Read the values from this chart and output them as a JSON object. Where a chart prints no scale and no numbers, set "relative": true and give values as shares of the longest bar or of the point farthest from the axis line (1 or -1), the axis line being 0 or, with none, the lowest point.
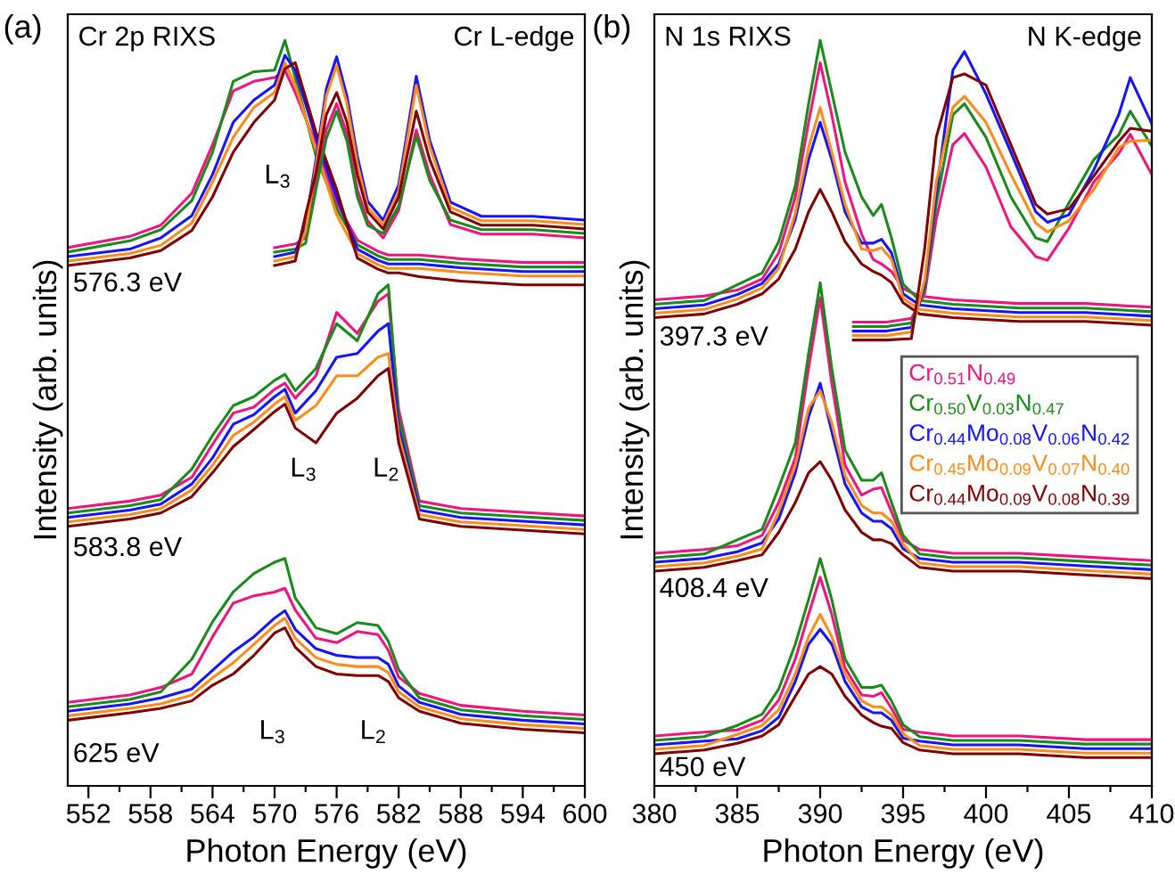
{
  "chart_data": [
    {
      "type": "line",
      "title": "(a)",
      "relative": true,
      "xlabel": "Photon Energy (eV)",
      "ylabel": "Intensity (arb. units)",
      "xlim": [
        550,
        600
      ],
      "xticks": [
        552,
        {
          "value": 555,
          "label": null
        },
        558,
        {
          "value": 561,
          "label": null
        },
        564,
        {
          "value": 567,
          "label": null
        },
        570,
        {
          "value": 573,
          "label": null
        },
        576,
        {
          "value": 579,
          "label": null
        },
        582,
        {
          "value": 585,
          "label": null
        },
        588,
        {
          "value": 591,
          "label": null
        },
        594,
        {
          "value": 597,
          "label": null
        },
        600
      ],
      "annotations": [
        "Cr 2p RIXS",
        "Cr L-edge",
        "576.3 eV",
        "583.8 eV",
        "625 eV",
        "L$_{3}$",
        "L$_{3}$",
        "L$_{2}$",
        "L$_{3}$",
        "L$_{2}$"
      ],
      "x": [
        550,
        556,
        559,
        562,
        564,
        566,
        568,
        570,
        571,
        572,
        574,
        576,
        578,
        580,
        581,
        582,
        584,
        588,
        594,
        600
      ],
      "series": [
        {
          "color": "#f0147f",
          "values": [
            0.722,
            0.737,
            0.752,
            0.795,
            0.86,
            0.932,
            0.945,
            0.95,
            0.96,
            0.93,
            0.861,
            0.782,
            0.732,
            0.717,
            0.712,
            0.712,
            0.712,
            0.707,
            0.702,
            0.702
          ]
        },
        {
          "color": "#1a8a1a",
          "values": [
            0.716,
            0.731,
            0.746,
            0.785,
            0.85,
            0.945,
            0.958,
            0.96,
            1.0,
            0.95,
            0.845,
            0.774,
            0.726,
            0.711,
            0.706,
            0.706,
            0.706,
            0.701,
            0.696,
            0.696
          ]
        },
        {
          "color": "#1414ff",
          "values": [
            0.71,
            0.72,
            0.735,
            0.765,
            0.82,
            0.89,
            0.92,
            0.94,
            0.98,
            0.96,
            0.869,
            0.79,
            0.72,
            0.705,
            0.7,
            0.7,
            0.7,
            0.695,
            0.69,
            0.69
          ]
        },
        {
          "color": "#ff8c1a",
          "values": [
            0.704,
            0.714,
            0.725,
            0.755,
            0.81,
            0.87,
            0.91,
            0.93,
            0.97,
            0.94,
            0.853,
            0.766,
            0.714,
            0.699,
            0.694,
            0.694,
            0.694,
            0.689,
            0.684,
            0.684
          ]
        },
        {
          "color": "#800000",
          "values": [
            0.698,
            0.708,
            0.718,
            0.745,
            0.79,
            0.85,
            0.89,
            0.92,
            0.962,
            0.97,
            0.877,
            0.8,
            0.708,
            0.693,
            0.688,
            0.688,
            0.683,
            0.677,
            0.672,
            0.672
          ]
        },
        {
          "color": "#f0147f",
          "x": [
            570,
            572,
            573,
            574,
            575,
            576,
            577,
            578,
            579,
            580.5,
            582,
            583.7,
            585,
            587,
            590,
            595,
            600
          ],
          "values": [
            0.722,
            0.727,
            0.735,
            0.81,
            0.88,
            0.915,
            0.875,
            0.8,
            0.758,
            0.735,
            0.772,
            0.88,
            0.82,
            0.753,
            0.74,
            0.74,
            0.735
          ]
        },
        {
          "color": "#1a8a1a",
          "x": [
            570,
            572,
            573,
            574,
            575,
            576,
            577,
            578,
            579,
            580.5,
            582,
            583.7,
            585,
            587,
            590,
            595,
            600
          ],
          "values": [
            0.716,
            0.72,
            0.728,
            0.8,
            0.868,
            0.905,
            0.865,
            0.79,
            0.752,
            0.741,
            0.778,
            0.872,
            0.812,
            0.759,
            0.746,
            0.746,
            0.741
          ]
        },
        {
          "color": "#1414ff",
          "x": [
            570,
            572,
            573,
            574,
            575,
            576,
            577,
            578,
            579,
            580.5,
            582,
            583.7,
            585,
            587,
            590,
            595,
            600
          ],
          "values": [
            0.71,
            0.716,
            0.752,
            0.84,
            0.935,
            0.978,
            0.925,
            0.845,
            0.784,
            0.759,
            0.806,
            0.952,
            0.866,
            0.783,
            0.764,
            0.764,
            0.759
          ]
        },
        {
          "color": "#ff8c1a",
          "x": [
            570,
            572,
            573,
            574,
            575,
            576,
            577,
            578,
            579,
            580.5,
            582,
            583.7,
            585,
            587,
            590,
            595,
            600
          ],
          "values": [
            0.704,
            0.71,
            0.744,
            0.832,
            0.925,
            0.966,
            0.915,
            0.835,
            0.776,
            0.753,
            0.798,
            0.94,
            0.858,
            0.776,
            0.758,
            0.758,
            0.753
          ]
        },
        {
          "color": "#800000",
          "x": [
            570,
            572,
            573,
            574,
            575,
            576,
            577,
            578,
            579,
            580.5,
            582,
            583.7,
            585,
            587,
            590,
            595,
            600
          ],
          "values": [
            0.698,
            0.704,
            0.766,
            0.822,
            0.9,
            0.93,
            0.89,
            0.82,
            0.77,
            0.747,
            0.79,
            0.905,
            0.84,
            0.77,
            0.752,
            0.752,
            0.747
          ]
        },
        {
          "color": "#f0147f",
          "values": [
            0.372,
            0.382,
            0.39,
            0.414,
            0.458,
            0.5,
            0.508,
            0.532,
            0.54,
            0.52,
            0.55,
            0.635,
            0.607,
            0.65,
            0.66,
            0.505,
            0.382,
            0.372,
            0.367,
            0.362
          ]
        },
        {
          "color": "#1a8a1a",
          "values": [
            0.366,
            0.376,
            0.384,
            0.425,
            0.47,
            0.51,
            0.522,
            0.544,
            0.552,
            0.53,
            0.56,
            0.62,
            0.597,
            0.66,
            0.672,
            0.495,
            0.376,
            0.366,
            0.361,
            0.356
          ]
        },
        {
          "color": "#1414ff",
          "values": [
            0.36,
            0.37,
            0.378,
            0.405,
            0.44,
            0.485,
            0.498,
            0.522,
            0.532,
            0.5,
            0.53,
            0.575,
            0.58,
            0.61,
            0.62,
            0.48,
            0.37,
            0.36,
            0.355,
            0.35
          ]
        },
        {
          "color": "#ff8c1a",
          "values": [
            0.354,
            0.364,
            0.372,
            0.397,
            0.43,
            0.47,
            0.488,
            0.512,
            0.522,
            0.49,
            0.51,
            0.55,
            0.55,
            0.575,
            0.58,
            0.47,
            0.364,
            0.354,
            0.349,
            0.344
          ]
        },
        {
          "color": "#800000",
          "values": [
            0.348,
            0.358,
            0.366,
            0.388,
            0.42,
            0.455,
            0.478,
            0.502,
            0.512,
            0.48,
            0.46,
            0.5,
            0.52,
            0.55,
            0.56,
            0.46,
            0.358,
            0.348,
            0.343,
            0.338
          ]
        },
        {
          "color": "#f0147f",
          "values": [
            0.112,
            0.122,
            0.132,
            0.15,
            0.2,
            0.245,
            0.255,
            0.26,
            0.265,
            0.236,
            0.198,
            0.192,
            0.207,
            0.203,
            0.182,
            0.146,
            0.124,
            0.108,
            0.1,
            0.095
          ]
        },
        {
          "color": "#1a8a1a",
          "values": [
            0.106,
            0.116,
            0.126,
            0.17,
            0.22,
            0.26,
            0.285,
            0.3,
            0.305,
            0.252,
            0.212,
            0.204,
            0.219,
            0.215,
            0.194,
            0.156,
            0.118,
            0.102,
            0.094,
            0.089
          ]
        },
        {
          "color": "#1414ff",
          "values": [
            0.1,
            0.11,
            0.118,
            0.13,
            0.155,
            0.18,
            0.2,
            0.225,
            0.235,
            0.21,
            0.184,
            0.175,
            0.172,
            0.172,
            0.163,
            0.134,
            0.112,
            0.096,
            0.088,
            0.083
          ]
        },
        {
          "color": "#ff8c1a",
          "values": [
            0.094,
            0.104,
            0.11,
            0.122,
            0.145,
            0.165,
            0.19,
            0.215,
            0.225,
            0.198,
            0.172,
            0.163,
            0.16,
            0.16,
            0.152,
            0.126,
            0.106,
            0.09,
            0.082,
            0.077
          ]
        },
        {
          "color": "#800000",
          "values": [
            0.088,
            0.098,
            0.104,
            0.114,
            0.135,
            0.15,
            0.175,
            0.205,
            0.212,
            0.186,
            0.16,
            0.15,
            0.148,
            0.148,
            0.14,
            0.118,
            0.1,
            0.084,
            0.076,
            0.071
          ]
        }
      ]
    },
    {
      "type": "line",
      "title": "(b)",
      "relative": true,
      "xlabel": "Photon Energy (eV)",
      "ylabel": "Intensity (arb. units)",
      "legend": "right",
      "xlim": [
        380,
        410
      ],
      "xticks": [
        380,
        {
          "value": 382.5,
          "label": null
        },
        385,
        {
          "value": 387.5,
          "label": null
        },
        390,
        {
          "value": 392.5,
          "label": null
        },
        395,
        {
          "value": 397.5,
          "label": null
        },
        400,
        {
          "value": 402.5,
          "label": null
        },
        405,
        {
          "value": 407.5,
          "label": null
        },
        410
      ],
      "annotations": [
        "N 1s RIXS",
        "N K-edge",
        "397.3 eV",
        "408.4 eV",
        "450 eV"
      ],
      "x": [
        380,
        383,
        385,
        386.5,
        387.5,
        388.5,
        389.3,
        390,
        390.7,
        391.5,
        392.5,
        393.2,
        393.7,
        394.3,
        395,
        396,
        398,
        402,
        406,
        410
      ],
      "series": [
        {
          "name": "Cr$_{0.51}$N$_{0.49}$",
          "color": "#f0147f",
          "values": [
            0.652,
            0.657,
            0.665,
            0.68,
            0.715,
            0.79,
            0.89,
            0.97,
            0.9,
            0.81,
            0.74,
            0.706,
            0.7,
            0.69,
            0.667,
            0.657,
            0.652,
            0.647,
            0.647,
            0.642
          ]
        },
        {
          "name": "Cr$_{0.50}$V$_{0.03}$N$_{0.47}$",
          "color": "#1a8a1a",
          "values": [
            0.646,
            0.651,
            0.672,
            0.688,
            0.73,
            0.805,
            0.915,
            1.0,
            0.93,
            0.85,
            0.79,
            0.765,
            0.78,
            0.735,
            0.673,
            0.651,
            0.646,
            0.641,
            0.641,
            0.636
          ]
        },
        {
          "name": "Cr$_{0.44}$Mo$_{0.08}$V$_{0.06}$N$_{0.42}$",
          "color": "#1414ff",
          "values": [
            0.64,
            0.645,
            0.659,
            0.674,
            0.7,
            0.76,
            0.84,
            0.89,
            0.84,
            0.77,
            0.728,
            0.728,
            0.733,
            0.715,
            0.66,
            0.645,
            0.64,
            0.635,
            0.635,
            0.63
          ]
        },
        {
          "name": "Cr$_{0.45}$Mo$_{0.09}$V$_{0.07}$N$_{0.40}$",
          "color": "#ff8c1a",
          "values": [
            0.634,
            0.639,
            0.653,
            0.668,
            0.694,
            0.768,
            0.856,
            0.91,
            0.85,
            0.78,
            0.72,
            0.718,
            0.722,
            0.706,
            0.654,
            0.639,
            0.634,
            0.629,
            0.629,
            0.624
          ]
        },
        {
          "name": "Cr$_{0.44}$Mo$_{0.09}$V$_{0.08}$N$_{0.39}$",
          "color": "#800000",
          "values": [
            0.628,
            0.633,
            0.646,
            0.66,
            0.68,
            0.72,
            0.77,
            0.8,
            0.77,
            0.73,
            0.7,
            0.69,
            0.685,
            0.675,
            0.648,
            0.633,
            0.628,
            0.623,
            0.623,
            0.618
          ]
        },
        {
          "color": "#f0147f",
          "x": [
            392,
            394,
            395.5,
            396.3,
            397,
            398,
            398.7,
            400,
            401.5,
            403,
            403.7,
            405,
            406.5,
            408,
            408.7,
            410
          ],
          "values": [
            0.622,
            0.622,
            0.627,
            0.66,
            0.76,
            0.86,
            0.875,
            0.83,
            0.75,
            0.71,
            0.705,
            0.748,
            0.81,
            0.848,
            0.874,
            0.82
          ]
        },
        {
          "color": "#1a8a1a",
          "x": [
            392,
            394,
            395.5,
            396.3,
            397,
            398,
            398.7,
            400,
            401.5,
            403,
            403.7,
            405,
            406.5,
            408,
            408.7,
            410
          ],
          "values": [
            0.616,
            0.616,
            0.621,
            0.666,
            0.78,
            0.9,
            0.915,
            0.87,
            0.79,
            0.735,
            0.73,
            0.782,
            0.84,
            0.873,
            0.905,
            0.858
          ]
        },
        {
          "color": "#1414ff",
          "x": [
            392,
            394,
            395.5,
            396.3,
            397,
            398,
            398.7,
            400,
            401.5,
            403,
            403.7,
            405,
            406.5,
            408,
            408.7,
            410
          ],
          "values": [
            0.61,
            0.61,
            0.615,
            0.672,
            0.795,
            0.96,
            0.985,
            0.928,
            0.85,
            0.77,
            0.756,
            0.766,
            0.826,
            0.9,
            0.95,
            0.888
          ]
        },
        {
          "color": "#ff8c1a",
          "x": [
            392,
            394,
            395.5,
            396.3,
            397,
            398,
            398.7,
            400,
            401.5,
            403,
            403.7,
            405,
            406.5,
            408,
            408.7,
            410
          ],
          "values": [
            0.604,
            0.604,
            0.609,
            0.678,
            0.81,
            0.91,
            0.925,
            0.89,
            0.82,
            0.755,
            0.743,
            0.758,
            0.8,
            0.856,
            0.865,
            0.866
          ]
        },
        {
          "color": "#800000",
          "x": [
            392,
            394,
            395.5,
            396.3,
            397,
            398,
            398.7,
            400,
            401.5,
            403,
            403.7,
            405,
            406.5,
            408,
            408.7,
            410
          ],
          "values": [
            0.598,
            0.598,
            0.6,
            0.72,
            0.87,
            0.95,
            0.955,
            0.94,
            0.86,
            0.78,
            0.767,
            0.774,
            0.818,
            0.864,
            0.882,
            0.878
          ]
        },
        {
          "color": "#f0147f",
          "values": [
            0.312,
            0.317,
            0.322,
            0.336,
            0.38,
            0.44,
            0.56,
            0.655,
            0.54,
            0.43,
            0.39,
            0.398,
            0.4,
            0.368,
            0.33,
            0.317,
            0.312,
            0.312,
            0.307,
            0.302
          ]
        },
        {
          "color": "#1a8a1a",
          "values": [
            0.306,
            0.311,
            0.33,
            0.344,
            0.4,
            0.46,
            0.58,
            0.675,
            0.56,
            0.45,
            0.41,
            0.41,
            0.42,
            0.38,
            0.336,
            0.311,
            0.306,
            0.306,
            0.301,
            0.296
          ]
        },
        {
          "color": "#1414ff",
          "values": [
            0.3,
            0.305,
            0.314,
            0.326,
            0.358,
            0.42,
            0.495,
            0.54,
            0.475,
            0.405,
            0.366,
            0.355,
            0.355,
            0.345,
            0.318,
            0.305,
            0.3,
            0.3,
            0.295,
            0.29
          ]
        },
        {
          "color": "#ff8c1a",
          "values": [
            0.294,
            0.299,
            0.308,
            0.318,
            0.368,
            0.43,
            0.507,
            0.53,
            0.487,
            0.416,
            0.376,
            0.366,
            0.366,
            0.355,
            0.324,
            0.299,
            0.294,
            0.294,
            0.289,
            0.284
          ]
        },
        {
          "color": "#800000",
          "values": [
            0.288,
            0.293,
            0.302,
            0.31,
            0.34,
            0.38,
            0.42,
            0.435,
            0.41,
            0.37,
            0.34,
            0.33,
            0.33,
            0.325,
            0.31,
            0.293,
            0.288,
            0.288,
            0.283,
            0.278
          ]
        },
        {
          "color": "#f0147f",
          "values": [
            0.067,
            0.072,
            0.075,
            0.088,
            0.115,
            0.17,
            0.23,
            0.28,
            0.23,
            0.158,
            0.122,
            0.12,
            0.125,
            0.104,
            0.076,
            0.072,
            0.067,
            0.067,
            0.062,
            0.062
          ]
        },
        {
          "color": "#1a8a1a",
          "values": [
            0.061,
            0.066,
            0.081,
            0.096,
            0.13,
            0.19,
            0.25,
            0.305,
            0.25,
            0.17,
            0.132,
            0.132,
            0.135,
            0.114,
            0.082,
            0.066,
            0.061,
            0.061,
            0.056,
            0.056
          ]
        },
        {
          "color": "#1414ff",
          "values": [
            0.055,
            0.06,
            0.063,
            0.074,
            0.092,
            0.14,
            0.19,
            0.21,
            0.19,
            0.14,
            0.106,
            0.098,
            0.098,
            0.088,
            0.064,
            0.06,
            0.055,
            0.055,
            0.05,
            0.05
          ]
        },
        {
          "color": "#ff8c1a",
          "values": [
            0.049,
            0.054,
            0.069,
            0.081,
            0.102,
            0.15,
            0.2,
            0.23,
            0.2,
            0.15,
            0.114,
            0.106,
            0.106,
            0.095,
            0.07,
            0.054,
            0.049,
            0.049,
            0.044,
            0.044
          ]
        },
        {
          "color": "#800000",
          "values": [
            0.043,
            0.048,
            0.057,
            0.067,
            0.082,
            0.12,
            0.15,
            0.16,
            0.15,
            0.12,
            0.095,
            0.085,
            0.08,
            0.077,
            0.058,
            0.048,
            0.043,
            0.043,
            0.038,
            0.038
          ]
        }
      ]
    }
  ]
}
